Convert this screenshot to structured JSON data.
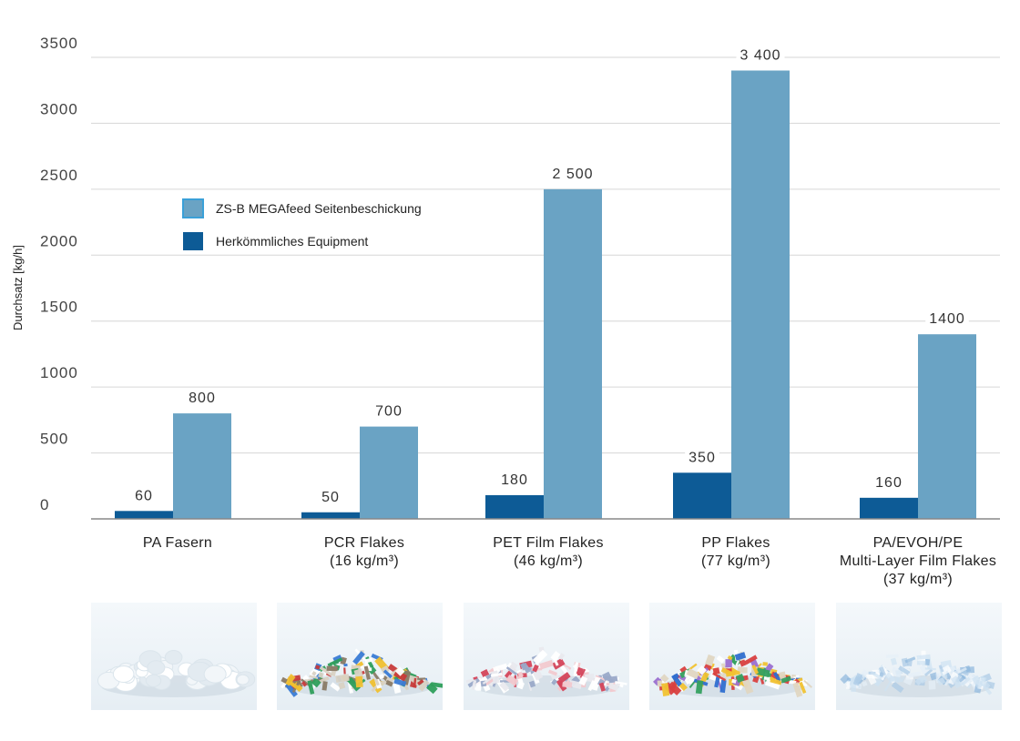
{
  "chart_data": {
    "type": "bar",
    "title": "",
    "xlabel": "",
    "ylabel": "Durchsatz [kg/h]",
    "ylim": [
      0,
      3500
    ],
    "yticks": [
      0,
      500,
      1000,
      1500,
      2000,
      2500,
      3000,
      3500
    ],
    "ytick_labels": [
      "0",
      "500",
      "1000",
      "1500",
      "2000",
      "2500",
      "3000",
      "3500"
    ],
    "grid": true,
    "legend_position": "upper-left",
    "categories": [
      [
        "PA Fasern"
      ],
      [
        "PCR Flakes",
        "(16 kg/m³)"
      ],
      [
        "PET Film Flakes",
        "(46 kg/m³)"
      ],
      [
        "PP Flakes",
        "(77 kg/m³)"
      ],
      [
        "PA/EVOH/PE",
        "Multi-Layer Film Flakes",
        "(37 kg/m³)"
      ]
    ],
    "series": [
      {
        "name": "Herkömmliches Equipment",
        "color": "#0d5b96",
        "values": [
          60,
          50,
          180,
          350,
          160
        ],
        "labels": [
          "60",
          "50",
          "180",
          "350",
          "160"
        ]
      },
      {
        "name": "ZS-B MEGAfeed Seitenbeschickung",
        "color": "#6aa3c4",
        "values": [
          800,
          700,
          2500,
          3400,
          1400
        ],
        "labels": [
          "800",
          "700",
          "2 500",
          "3 400",
          "1400"
        ]
      }
    ],
    "legend_order": [
      1,
      0
    ]
  },
  "colors": {
    "grid": "#d6d6d6",
    "axis": "#888888",
    "photo_background": "#eaf1f6"
  },
  "photos": [
    {
      "icon": "pa-fibers-photo"
    },
    {
      "icon": "pcr-flakes-photo"
    },
    {
      "icon": "pet-film-flakes-photo"
    },
    {
      "icon": "pp-flakes-photo"
    },
    {
      "icon": "multilayer-film-flakes-photo"
    }
  ]
}
